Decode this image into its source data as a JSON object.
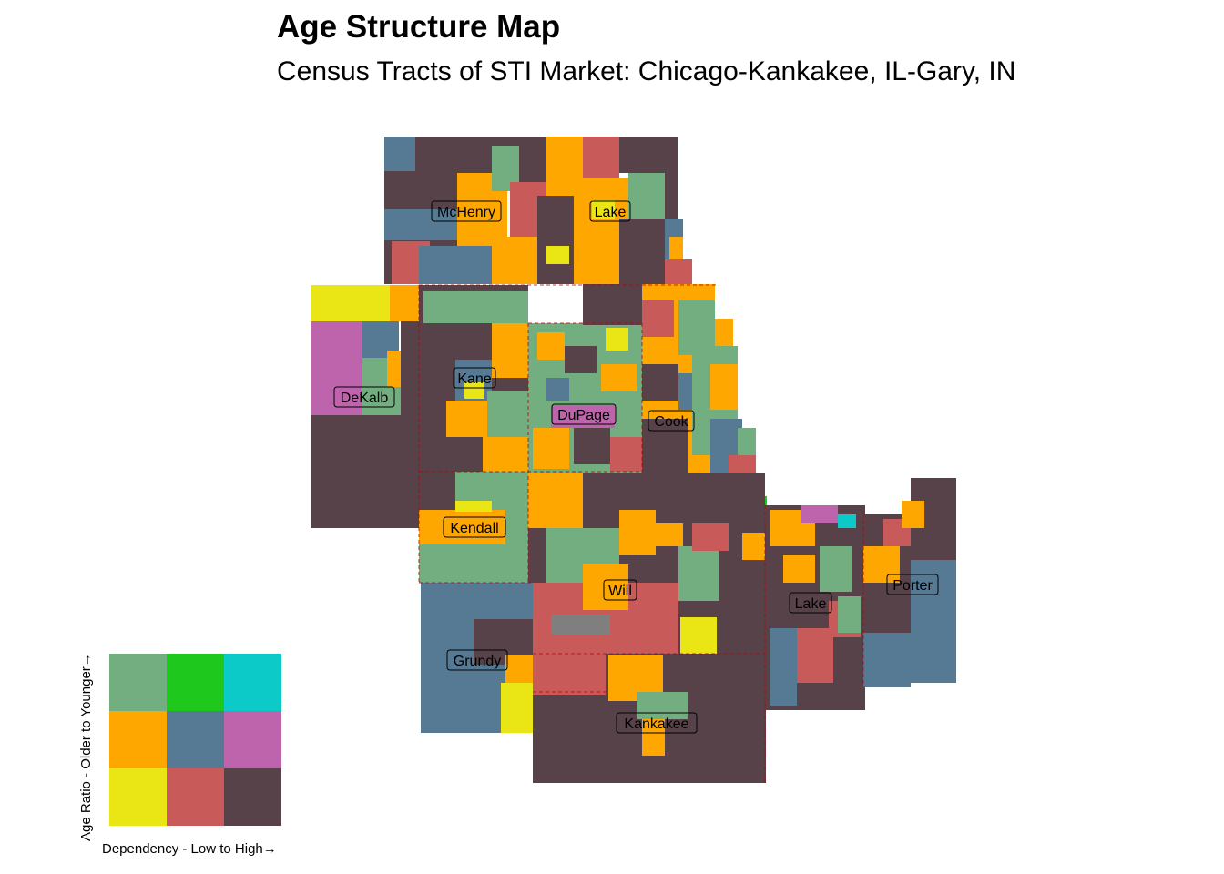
{
  "title": "Age Structure Map",
  "subtitle": "Census Tracts of STI Market: Chicago-Kankakee, IL-Gary, IN",
  "palette": {
    "c11": "#eae515",
    "c21": "#c85a5a",
    "c31": "#574249",
    "c12": "#fda700",
    "c22": "#567994",
    "c32": "#be64ac",
    "c13": "#73ae80",
    "c23": "#1ec81c",
    "c33": "#0ccac8",
    "grey": "#7f7f7f"
  },
  "counties": [
    {
      "name": "McHenry"
    },
    {
      "name": "Lake"
    },
    {
      "name": "Kane"
    },
    {
      "name": "DeKalb"
    },
    {
      "name": "DuPage"
    },
    {
      "name": "Cook"
    },
    {
      "name": "Kendall"
    },
    {
      "name": "Will"
    },
    {
      "name": "Grundy"
    },
    {
      "name": "Kankakee"
    },
    {
      "name": "Lake"
    },
    {
      "name": "Porter"
    }
  ],
  "legend": {
    "x_label": "Dependency - Low to High→",
    "y_label": "Age Ratio - Older to Younger→",
    "grid": [
      [
        "c13",
        "c23",
        "c33"
      ],
      [
        "c12",
        "c22",
        "c32"
      ],
      [
        "c11",
        "c21",
        "c31"
      ]
    ]
  }
}
